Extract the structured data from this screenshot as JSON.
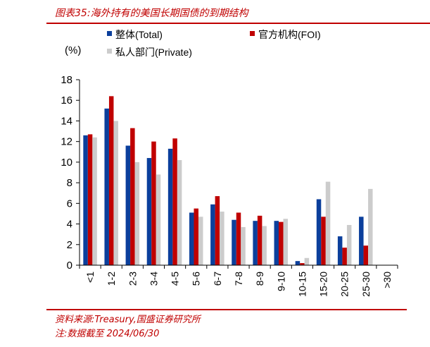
{
  "figure": {
    "title": "图表35:海外持有的美国长期国债的到期结构",
    "source": "资料来源:Treasury,国盛证券研究所",
    "note": "注:数据截至 2024/06/30"
  },
  "colors": {
    "accent_red": "#c00000",
    "axis": "#000000"
  },
  "chart_data": {
    "type": "bar",
    "title": "",
    "unit_label": "(%)",
    "xlabel": "",
    "ylabel": "",
    "ylim": [
      0,
      18
    ],
    "yticks": [
      0,
      2,
      4,
      6,
      8,
      10,
      12,
      14,
      16,
      18
    ],
    "legend_placement": "top",
    "grid": false,
    "categories": [
      "<1",
      "1-2",
      "2-3",
      "3-4",
      "4-5",
      "5-6",
      "6-7",
      "7-8",
      "8-9",
      "9-10",
      "10-15",
      "15-20",
      "20-25",
      "25-30",
      ">30"
    ],
    "series": [
      {
        "name": "整体(Total)",
        "color": "#0b3f9c",
        "values": [
          12.6,
          15.2,
          11.6,
          10.4,
          11.3,
          5.1,
          5.9,
          4.4,
          4.3,
          4.3,
          0.4,
          6.4,
          2.8,
          4.7,
          0
        ]
      },
      {
        "name": "官方机构(FOI)",
        "color": "#c00000",
        "values": [
          12.7,
          16.4,
          13.3,
          12.0,
          12.3,
          5.5,
          6.7,
          5.1,
          4.8,
          4.2,
          0.2,
          4.7,
          1.7,
          1.9,
          0
        ]
      },
      {
        "name": "私人部门(Private)",
        "color": "#cccccc",
        "values": [
          12.4,
          14.0,
          10.0,
          8.8,
          10.2,
          4.7,
          5.2,
          3.7,
          3.8,
          4.5,
          0.7,
          8.1,
          3.9,
          7.4,
          0
        ]
      }
    ]
  }
}
